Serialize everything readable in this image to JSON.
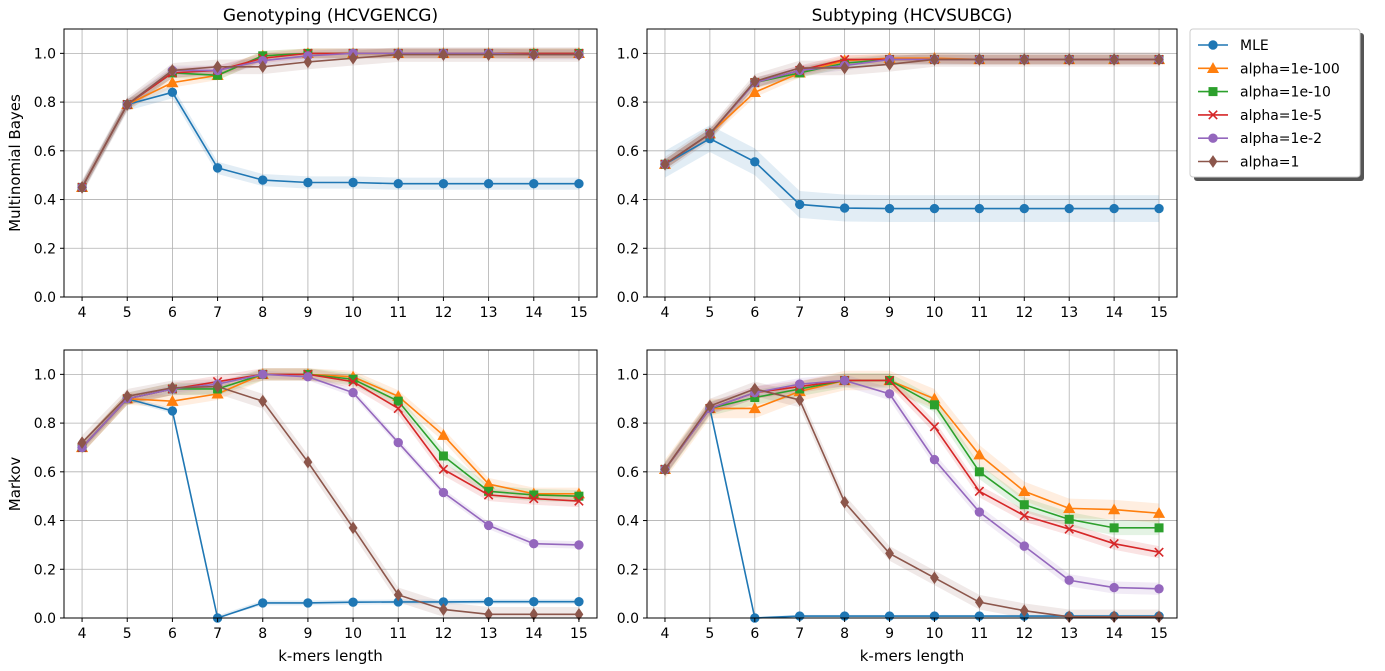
{
  "legend": {
    "placement": "right of top-right panel",
    "items": [
      {
        "label": "MLE",
        "color": "#1f77b4",
        "marker": "circle"
      },
      {
        "label": "alpha=1e-100",
        "color": "#ff7f0e",
        "marker": "triangle"
      },
      {
        "label": "alpha=1e-10",
        "color": "#2ca02c",
        "marker": "square"
      },
      {
        "label": "alpha=1e-5",
        "color": "#d62728",
        "marker": "x"
      },
      {
        "label": "alpha=1e-2",
        "color": "#9467bd",
        "marker": "circle"
      },
      {
        "label": "alpha=1",
        "color": "#8c564b",
        "marker": "diamond"
      }
    ]
  },
  "chart_data": [
    {
      "type": "line",
      "title": "Genotyping (HCVGENCG)",
      "xlabel": "",
      "ylabel": "Multinomial Bayes",
      "xlim": [
        3.6,
        15.4
      ],
      "ylim": [
        0,
        1.1
      ],
      "grid": true,
      "x": [
        4,
        5,
        6,
        7,
        8,
        9,
        10,
        11,
        12,
        13,
        14,
        15
      ],
      "series": [
        {
          "name": "MLE",
          "values": [
            0.45,
            0.79,
            0.84,
            0.53,
            0.48,
            0.47,
            0.47,
            0.465,
            0.465,
            0.465,
            0.465,
            0.465
          ],
          "band": 0.025
        },
        {
          "name": "alpha=1e-100",
          "values": [
            0.45,
            0.79,
            0.88,
            0.91,
            0.99,
            1.0,
            1.0,
            1.0,
            1.0,
            1.0,
            1.0,
            1.0
          ],
          "band": 0.02
        },
        {
          "name": "alpha=1e-10",
          "values": [
            0.45,
            0.79,
            0.92,
            0.91,
            0.99,
            1.0,
            1.0,
            1.0,
            1.0,
            1.0,
            1.0,
            1.0
          ],
          "band": 0.02
        },
        {
          "name": "alpha=1e-5",
          "values": [
            0.45,
            0.79,
            0.92,
            0.93,
            0.98,
            1.0,
            1.0,
            1.0,
            1.0,
            1.0,
            1.0,
            1.0
          ],
          "band": 0.02
        },
        {
          "name": "alpha=1e-2",
          "values": [
            0.45,
            0.79,
            0.93,
            0.93,
            0.97,
            0.99,
            1.0,
            1.0,
            1.0,
            1.0,
            0.995,
            0.995
          ],
          "band": 0.02
        },
        {
          "name": "alpha=1",
          "values": [
            0.45,
            0.79,
            0.93,
            0.945,
            0.945,
            0.965,
            0.98,
            0.995,
            0.995,
            0.995,
            0.995,
            0.995
          ],
          "band": 0.03
        }
      ]
    },
    {
      "type": "line",
      "title": "Subtyping (HCVSUBCG)",
      "xlabel": "",
      "ylabel": "",
      "xlim": [
        3.6,
        15.4
      ],
      "ylim": [
        0,
        1.1
      ],
      "grid": true,
      "x": [
        4,
        5,
        6,
        7,
        8,
        9,
        10,
        11,
        12,
        13,
        14,
        15
      ],
      "series": [
        {
          "name": "MLE",
          "values": [
            0.545,
            0.65,
            0.555,
            0.38,
            0.365,
            0.363,
            0.363,
            0.363,
            0.363,
            0.363,
            0.363,
            0.363
          ],
          "band": 0.055
        },
        {
          "name": "alpha=1e-100",
          "values": [
            0.545,
            0.67,
            0.84,
            0.92,
            0.97,
            0.98,
            0.98,
            0.975,
            0.975,
            0.975,
            0.975,
            0.975
          ],
          "band": 0.02
        },
        {
          "name": "alpha=1e-10",
          "values": [
            0.545,
            0.67,
            0.88,
            0.92,
            0.96,
            0.975,
            0.975,
            0.975,
            0.975,
            0.975,
            0.975,
            0.975
          ],
          "band": 0.02
        },
        {
          "name": "alpha=1e-5",
          "values": [
            0.545,
            0.67,
            0.88,
            0.93,
            0.975,
            0.975,
            0.975,
            0.975,
            0.975,
            0.975,
            0.975,
            0.975
          ],
          "band": 0.02
        },
        {
          "name": "alpha=1e-2",
          "values": [
            0.545,
            0.67,
            0.88,
            0.93,
            0.95,
            0.975,
            0.975,
            0.975,
            0.975,
            0.975,
            0.975,
            0.975
          ],
          "band": 0.02
        },
        {
          "name": "alpha=1",
          "values": [
            0.545,
            0.67,
            0.885,
            0.94,
            0.94,
            0.955,
            0.975,
            0.975,
            0.975,
            0.975,
            0.975,
            0.975
          ],
          "band": 0.03
        }
      ]
    },
    {
      "type": "line",
      "title": "",
      "xlabel": "k-mers length",
      "ylabel": "Markov",
      "xlim": [
        3.6,
        15.4
      ],
      "ylim": [
        0,
        1.1
      ],
      "grid": true,
      "x": [
        4,
        5,
        6,
        7,
        8,
        9,
        10,
        11,
        12,
        13,
        14,
        15
      ],
      "series": [
        {
          "name": "MLE",
          "values": [
            0.7,
            0.9,
            0.85,
            0.0,
            0.062,
            0.062,
            0.065,
            0.066,
            0.066,
            0.067,
            0.067,
            0.067
          ],
          "band": 0.01
        },
        {
          "name": "alpha=1e-100",
          "values": [
            0.7,
            0.9,
            0.89,
            0.92,
            1.0,
            1.0,
            0.99,
            0.91,
            0.75,
            0.55,
            0.51,
            0.51
          ],
          "band": 0.025
        },
        {
          "name": "alpha=1e-10",
          "values": [
            0.7,
            0.9,
            0.94,
            0.94,
            1.0,
            1.0,
            0.98,
            0.89,
            0.665,
            0.52,
            0.505,
            0.5
          ],
          "band": 0.025
        },
        {
          "name": "alpha=1e-5",
          "values": [
            0.7,
            0.9,
            0.94,
            0.97,
            1.0,
            1.0,
            0.97,
            0.86,
            0.61,
            0.505,
            0.49,
            0.48
          ],
          "band": 0.025
        },
        {
          "name": "alpha=1e-2",
          "values": [
            0.7,
            0.9,
            0.94,
            0.96,
            1.0,
            0.99,
            0.925,
            0.72,
            0.515,
            0.38,
            0.305,
            0.3
          ],
          "band": 0.015
        },
        {
          "name": "alpha=1",
          "values": [
            0.72,
            0.91,
            0.945,
            0.95,
            0.89,
            0.64,
            0.37,
            0.095,
            0.035,
            0.015,
            0.015,
            0.015
          ],
          "band": 0.03
        }
      ]
    },
    {
      "type": "line",
      "title": "",
      "xlabel": "k-mers length",
      "ylabel": "",
      "xlim": [
        3.6,
        15.4
      ],
      "ylim": [
        0,
        1.1
      ],
      "grid": true,
      "x": [
        4,
        5,
        6,
        7,
        8,
        9,
        10,
        11,
        12,
        13,
        14,
        15
      ],
      "series": [
        {
          "name": "MLE",
          "values": [
            0.61,
            0.86,
            0.0,
            0.008,
            0.008,
            0.008,
            0.008,
            0.008,
            0.008,
            0.008,
            0.008,
            0.008
          ],
          "band": 0.005
        },
        {
          "name": "alpha=1e-100",
          "values": [
            0.61,
            0.86,
            0.86,
            0.93,
            0.975,
            0.975,
            0.9,
            0.67,
            0.52,
            0.45,
            0.445,
            0.43
          ],
          "band": 0.04
        },
        {
          "name": "alpha=1e-10",
          "values": [
            0.61,
            0.86,
            0.905,
            0.94,
            0.975,
            0.975,
            0.875,
            0.6,
            0.465,
            0.405,
            0.37,
            0.37
          ],
          "band": 0.03
        },
        {
          "name": "alpha=1e-5",
          "values": [
            0.61,
            0.86,
            0.925,
            0.95,
            0.975,
            0.975,
            0.785,
            0.52,
            0.42,
            0.365,
            0.305,
            0.27
          ],
          "band": 0.025
        },
        {
          "name": "alpha=1e-2",
          "values": [
            0.61,
            0.86,
            0.925,
            0.96,
            0.975,
            0.92,
            0.65,
            0.435,
            0.295,
            0.155,
            0.125,
            0.12
          ],
          "band": 0.025
        },
        {
          "name": "alpha=1",
          "values": [
            0.61,
            0.87,
            0.94,
            0.895,
            0.475,
            0.265,
            0.165,
            0.065,
            0.03,
            0.005,
            0.005,
            0.005
          ],
          "band": 0.03
        }
      ]
    }
  ]
}
